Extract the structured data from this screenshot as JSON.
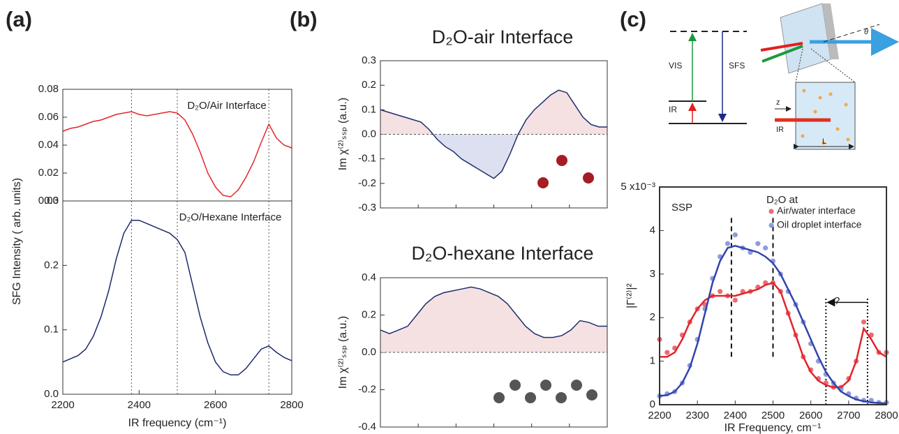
{
  "chart_data": [
    {
      "type": "line",
      "panel_label": "(a)",
      "annotation": "D₂O/Air Interface",
      "ylabel": "SFG Intensity ( arb. units)",
      "color": "#e3262b",
      "x": [
        2200,
        2220,
        2240,
        2260,
        2280,
        2300,
        2320,
        2340,
        2360,
        2380,
        2400,
        2420,
        2440,
        2460,
        2480,
        2500,
        2520,
        2540,
        2560,
        2580,
        2600,
        2620,
        2640,
        2660,
        2680,
        2700,
        2720,
        2740,
        2760,
        2780,
        2800
      ],
      "values": [
        0.05,
        0.052,
        0.053,
        0.055,
        0.057,
        0.058,
        0.06,
        0.062,
        0.063,
        0.064,
        0.062,
        0.061,
        0.062,
        0.063,
        0.064,
        0.063,
        0.058,
        0.048,
        0.035,
        0.02,
        0.01,
        0.004,
        0.003,
        0.008,
        0.017,
        0.028,
        0.042,
        0.055,
        0.045,
        0.04,
        0.038
      ],
      "xlim": [
        2200,
        2800
      ],
      "ylim": [
        0,
        0.08
      ],
      "yticks": [
        {
          "value": 0,
          "label": "0.00"
        },
        0.02,
        0.04,
        0.06,
        0.08
      ],
      "vlines": [
        2380,
        2500,
        2740
      ]
    },
    {
      "type": "line",
      "annotation": "D₂O/Hexane Interface",
      "xlabel": "IR frequency (cm⁻¹)",
      "color": "#1b2a6b",
      "x": [
        2200,
        2220,
        2240,
        2260,
        2280,
        2300,
        2320,
        2340,
        2360,
        2380,
        2400,
        2420,
        2440,
        2460,
        2480,
        2500,
        2520,
        2540,
        2560,
        2580,
        2600,
        2620,
        2640,
        2660,
        2680,
        2700,
        2720,
        2740,
        2760,
        2780,
        2800
      ],
      "values": [
        0.05,
        0.055,
        0.06,
        0.07,
        0.09,
        0.12,
        0.16,
        0.21,
        0.25,
        0.27,
        0.27,
        0.265,
        0.26,
        0.255,
        0.25,
        0.24,
        0.22,
        0.17,
        0.12,
        0.08,
        0.05,
        0.035,
        0.03,
        0.03,
        0.04,
        0.055,
        0.07,
        0.075,
        0.065,
        0.057,
        0.052
      ],
      "xlim": [
        2200,
        2800
      ],
      "ylim": [
        0,
        0.3
      ],
      "xticks": [
        2200,
        2400,
        2600,
        2800
      ],
      "yticks": [
        {
          "value": 0,
          "label": "0.0"
        },
        0.1,
        0.2,
        0.3
      ],
      "vlines": [
        2380,
        2500,
        2740
      ]
    },
    {
      "type": "line",
      "panel_label": "(b)",
      "title": "D₂O-air  Interface",
      "ylabel": "Im χ⁽²⁾ₛₛₚ (a.u.)",
      "color": "#1f2d6e",
      "fill": true,
      "fill_colors": [
        "#f5e1e2",
        "#dde0f0"
      ],
      "zero_line": true,
      "values": [
        0.1,
        0.09,
        0.08,
        0.07,
        0.06,
        0.05,
        0.02,
        -0.02,
        -0.05,
        -0.07,
        -0.1,
        -0.12,
        -0.14,
        -0.16,
        -0.18,
        -0.15,
        -0.08,
        0.0,
        0.06,
        0.1,
        0.13,
        0.16,
        0.18,
        0.17,
        0.12,
        0.07,
        0.04,
        0.03,
        0.03
      ],
      "ylim": [
        -0.3,
        0.3
      ],
      "yticks": [
        0.3,
        0.2,
        0.1,
        {
          "value": 0,
          "label": "0.0"
        },
        -0.1,
        -0.2,
        -0.3
      ]
    },
    {
      "type": "line",
      "title": "D₂O-hexane  Interface",
      "ylabel": "Im χ⁽²⁾ₛₛₚ (a.u.)",
      "color": "#1f2d6e",
      "fill": true,
      "fill_colors": [
        "#f5e1e2",
        "#dde0f0"
      ],
      "zero_line": true,
      "values": [
        0.12,
        0.1,
        0.12,
        0.14,
        0.2,
        0.26,
        0.3,
        0.32,
        0.33,
        0.34,
        0.35,
        0.34,
        0.32,
        0.3,
        0.26,
        0.2,
        0.14,
        0.1,
        0.08,
        0.08,
        0.09,
        0.12,
        0.17,
        0.16,
        0.14,
        0.14
      ],
      "ylim": [
        -0.4,
        0.4
      ],
      "yticks": [
        0.4,
        0.2,
        {
          "value": 0,
          "label": "0.0"
        },
        -0.2,
        -0.4
      ]
    },
    {
      "type": "scatter",
      "panel_label": "(c)",
      "ylabel": "|Γ⁽²⁾|²",
      "xlabel": "IR Frequency, cm⁻¹",
      "annotations": [
        "SSP",
        "D₂O at",
        "?"
      ],
      "xlim": [
        2200,
        2800
      ],
      "ylim": [
        0,
        5
      ],
      "xticks": [
        2200,
        2300,
        2400,
        2500,
        2600,
        2700,
        2800
      ],
      "yticks": [
        0,
        1,
        2,
        3,
        4,
        {
          "value": 5,
          "label": "5 x10⁻³"
        }
      ],
      "vlines_dashed": [
        2390,
        2500
      ],
      "vlines_dotted": [
        2640,
        2750
      ],
      "fit_x": [
        2200,
        2220,
        2240,
        2260,
        2280,
        2300,
        2320,
        2340,
        2360,
        2380,
        2400,
        2420,
        2440,
        2460,
        2480,
        2500,
        2520,
        2540,
        2560,
        2580,
        2600,
        2620,
        2640,
        2660,
        2680,
        2700,
        2720,
        2740,
        2760,
        2780,
        2800
      ],
      "series": [
        {
          "name": "Air/water interface",
          "color": "#ec6b72",
          "fit_color": "#e0242c",
          "x": [
            2200,
            2220,
            2240,
            2260,
            2280,
            2300,
            2320,
            2340,
            2360,
            2380,
            2400,
            2420,
            2440,
            2460,
            2480,
            2500,
            2520,
            2540,
            2560,
            2580,
            2600,
            2620,
            2640,
            2660,
            2680,
            2700,
            2720,
            2740,
            2760,
            2780,
            2800
          ],
          "values": [
            1.5,
            1.2,
            1.3,
            1.6,
            1.9,
            2.2,
            2.3,
            2.5,
            2.6,
            2.5,
            2.4,
            2.6,
            2.6,
            2.7,
            2.8,
            2.8,
            2.6,
            2.1,
            1.6,
            1.1,
            0.8,
            0.6,
            0.5,
            0.4,
            0.4,
            0.6,
            1.0,
            1.9,
            1.6,
            1.2,
            1.2
          ],
          "fit": [
            1.1,
            1.1,
            1.2,
            1.5,
            1.9,
            2.2,
            2.4,
            2.5,
            2.5,
            2.5,
            2.5,
            2.55,
            2.6,
            2.65,
            2.75,
            2.8,
            2.6,
            2.1,
            1.6,
            1.1,
            0.75,
            0.55,
            0.45,
            0.4,
            0.4,
            0.55,
            1.0,
            1.75,
            1.5,
            1.2,
            1.1
          ]
        },
        {
          "name": "Oil droplet interface",
          "color": "#8c9ce0",
          "fit_color": "#3343ad",
          "x": [
            2200,
            2220,
            2240,
            2260,
            2280,
            2300,
            2320,
            2340,
            2360,
            2380,
            2400,
            2420,
            2440,
            2460,
            2480,
            2500,
            2520,
            2540,
            2560,
            2580,
            2600,
            2620,
            2640,
            2660,
            2680,
            2700,
            2720,
            2740,
            2760,
            2780,
            2800
          ],
          "values": [
            0.2,
            0.25,
            0.3,
            0.5,
            0.9,
            1.5,
            2.2,
            2.9,
            3.4,
            3.7,
            3.9,
            3.6,
            3.5,
            3.7,
            3.6,
            3.3,
            3.0,
            2.6,
            2.3,
            1.9,
            1.4,
            1.0,
            0.7,
            0.5,
            0.35,
            0.25,
            0.15,
            0.1,
            0.1,
            0.05,
            0.05
          ],
          "fit": [
            0.2,
            0.22,
            0.3,
            0.5,
            0.85,
            1.4,
            2.1,
            2.8,
            3.3,
            3.6,
            3.65,
            3.6,
            3.55,
            3.5,
            3.4,
            3.25,
            3.0,
            2.65,
            2.3,
            1.9,
            1.5,
            1.1,
            0.75,
            0.5,
            0.3,
            0.2,
            0.12,
            0.08,
            0.05,
            0.04,
            0.03
          ]
        }
      ]
    }
  ],
  "diagram": {
    "labels": [
      "VIS",
      "SFS",
      "IR",
      "z",
      "IR",
      "L",
      "θ"
    ]
  }
}
